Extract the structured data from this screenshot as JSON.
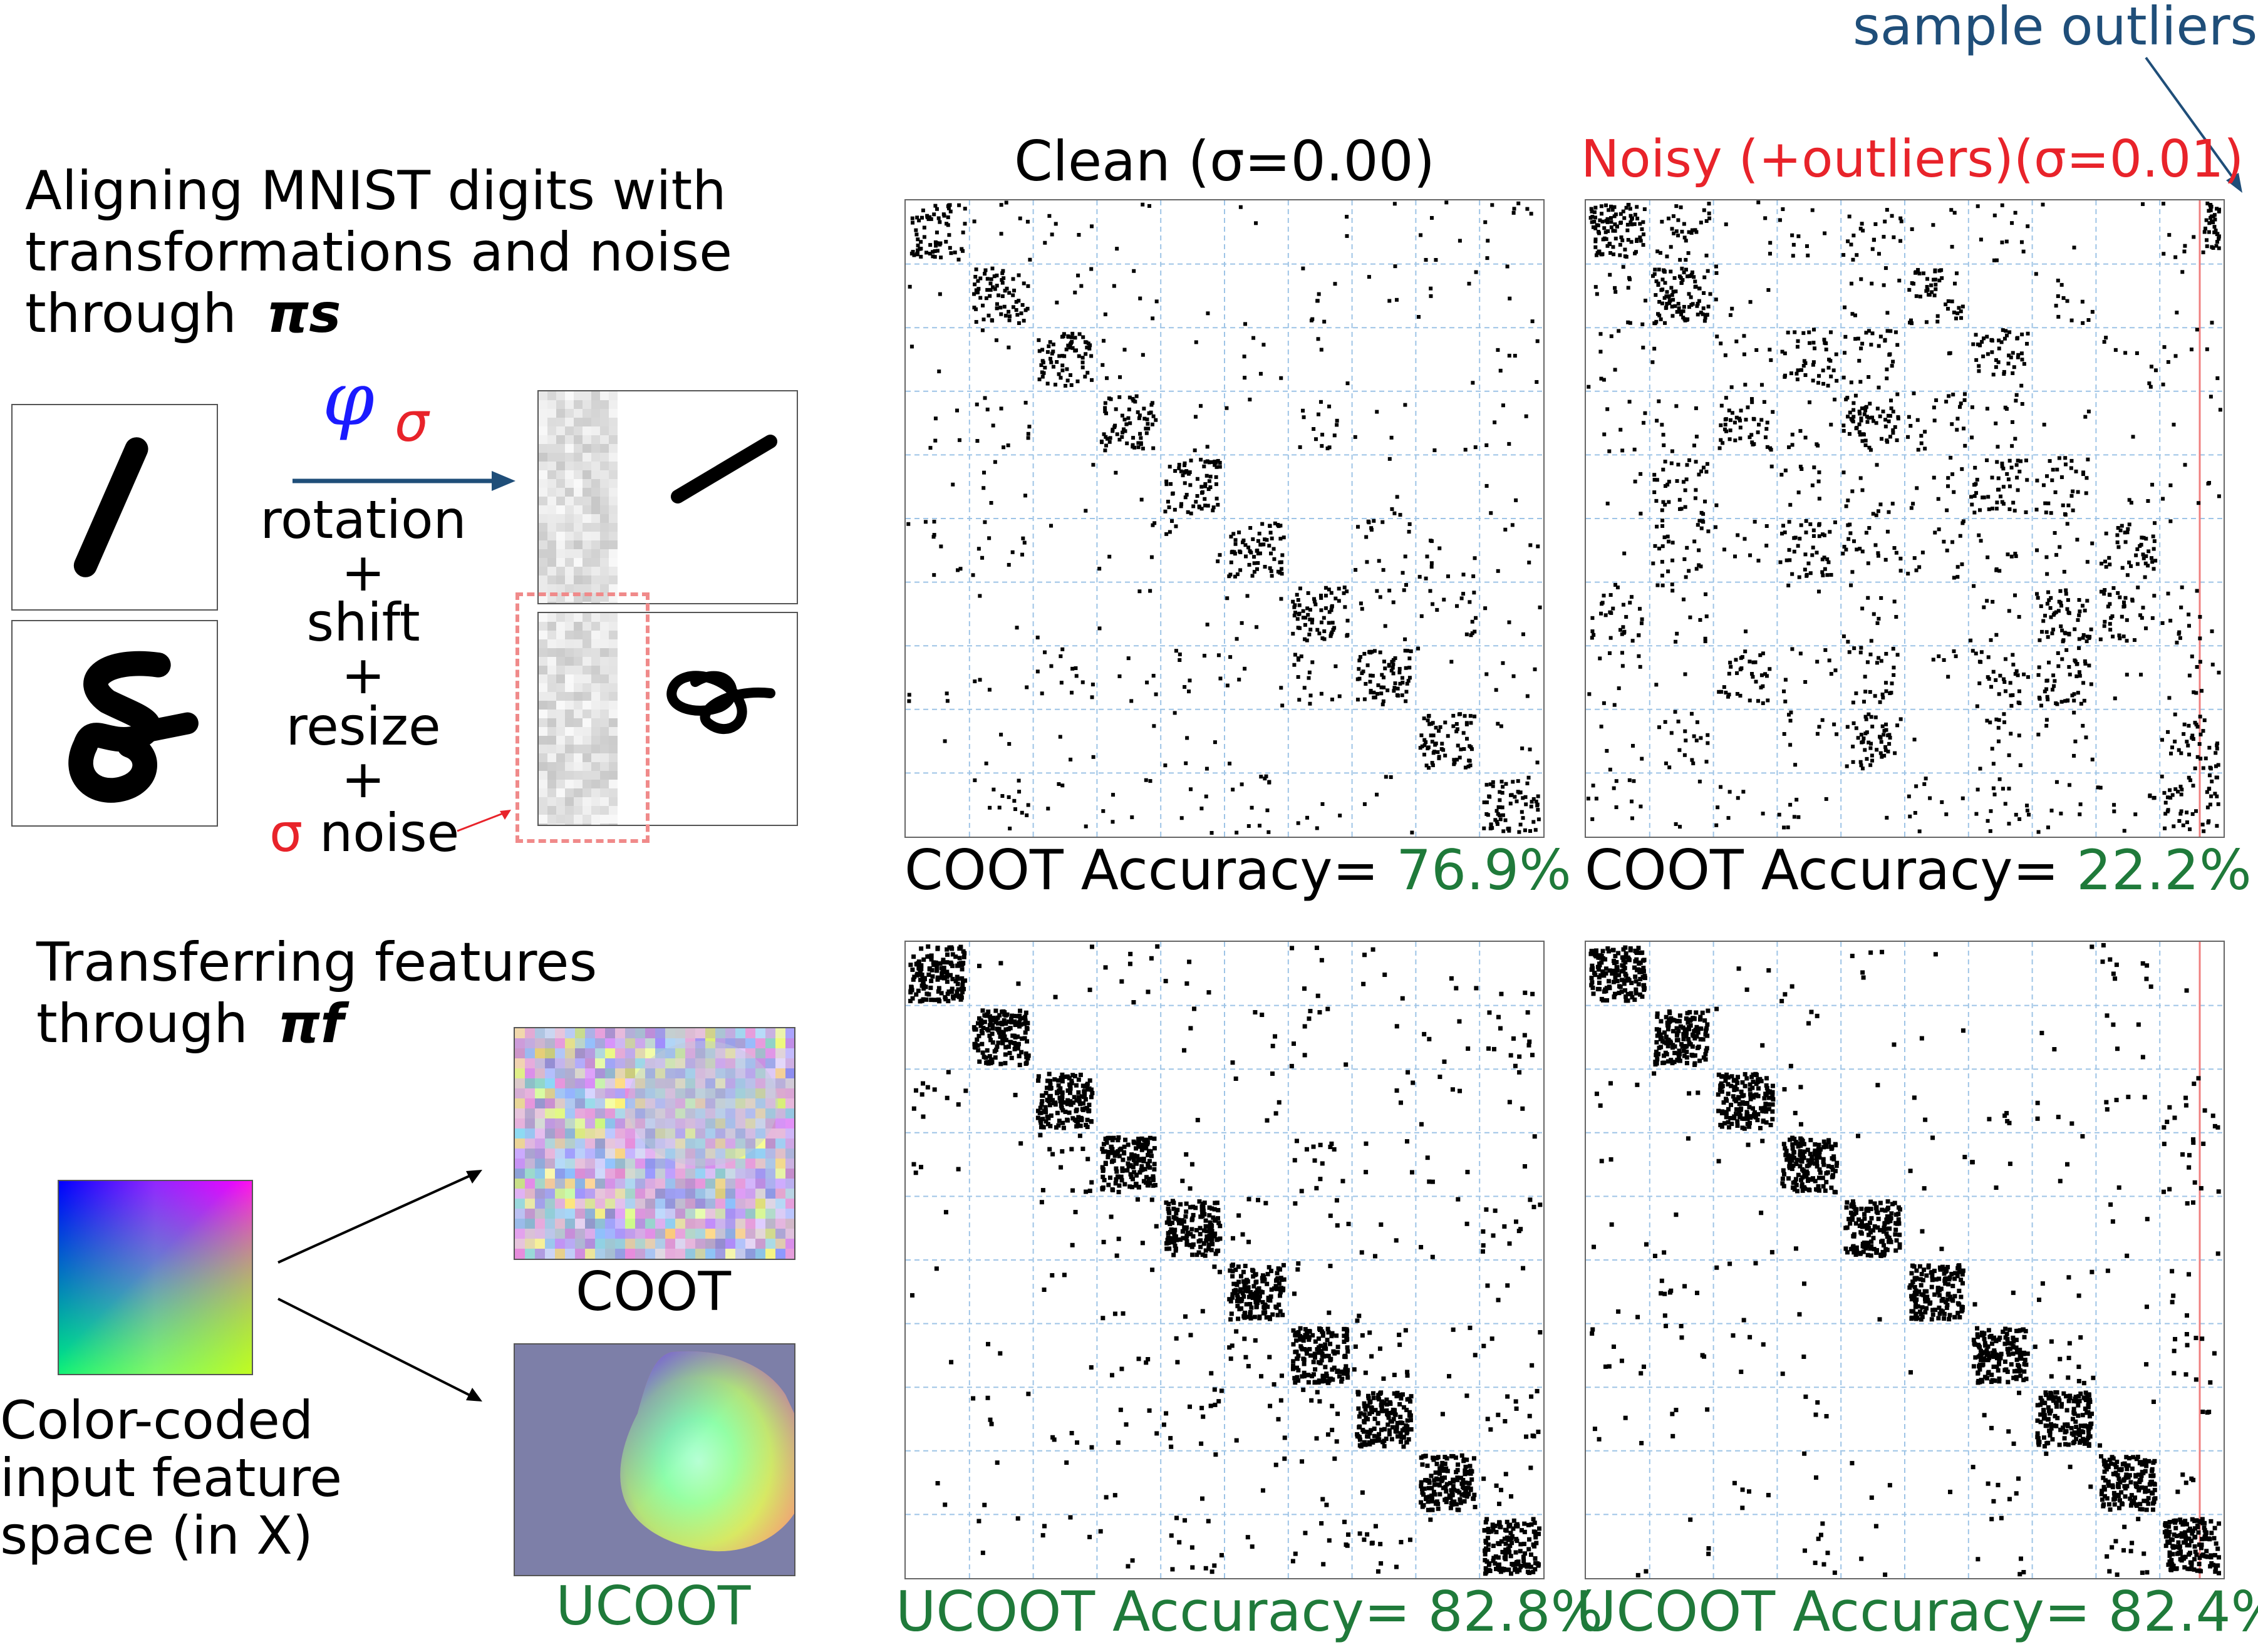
{
  "left": {
    "heading_lines": [
      "Aligning MNIST digits with",
      "transformations and noise",
      "through "
    ],
    "heading_pi_label": "πs",
    "phi_symbol": "φ",
    "phi_sigma": "σ",
    "transform_steps": [
      "rotation",
      "+",
      "shift",
      "+",
      "resize",
      "+"
    ],
    "noise_sigma": "σ",
    "noise_label": " noise",
    "transfer_heading_lines": [
      "Transferring features",
      "through "
    ],
    "transfer_pi_label": "πf",
    "color_space_caption_lines": [
      "Color-coded",
      "input feature",
      "space (in X)"
    ],
    "coot_caption": "COOT",
    "ucoot_caption": "UCOOT"
  },
  "matrices": {
    "col_titles": [
      "Clean (σ=0.00)",
      "Noisy (+outliers)(σ=0.01)"
    ],
    "outlier_annotation": "sample outliers",
    "coot_prefix": "COOT Accuracy= ",
    "ucoot_prefix": "UCOOT Accuracy= ",
    "coot_clean_acc": "76.9%",
    "coot_noisy_acc": "22.2%",
    "ucoot_clean_acc": "82.8%",
    "ucoot_noisy_acc": "82.4%"
  },
  "colors": {
    "text": "#000000",
    "noisy_title": "#e8232a",
    "accuracy_green": "#1f7a3a",
    "annotation_blue": "#1f4e79",
    "phi_blue": "#1a1aff",
    "sigma_red": "#e8232a",
    "arrow_blue": "#1f4e79",
    "grid_blue": "#9ec4e6",
    "outlier_line": "#f08080",
    "dashed_box": "#f08a8a",
    "ucoot_bg": "#7d7fa8"
  }
}
